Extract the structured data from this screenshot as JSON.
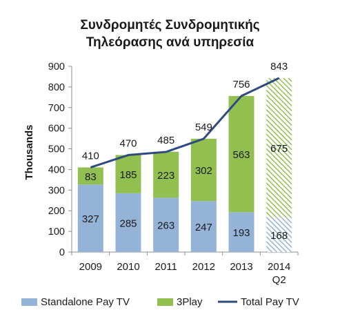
{
  "chart_data": {
    "type": "bar",
    "title": [
      "Συνδρομητές Συνδρομητικής",
      "Τηλεόρασης ανά υπηρεσία"
    ],
    "ylabel": "Thousands",
    "ylim": [
      0,
      900
    ],
    "yticks": [
      0,
      100,
      200,
      300,
      400,
      500,
      600,
      700,
      800,
      900
    ],
    "categories": [
      "2009",
      "2010",
      "2011",
      "2012",
      "2013",
      "2014\nQ2"
    ],
    "series": [
      {
        "name": "Standalone Pay TV",
        "kind": "bar-stack",
        "color": "#95b3d7",
        "values": [
          327,
          285,
          263,
          247,
          193,
          168
        ]
      },
      {
        "name": "3Play",
        "kind": "bar-stack",
        "color": "#92c050",
        "values": [
          83,
          185,
          223,
          302,
          563,
          675
        ]
      },
      {
        "name": "Total Pay TV",
        "kind": "line",
        "color": "#2e4a7e",
        "values": [
          410,
          470,
          485,
          549,
          756,
          843
        ]
      }
    ],
    "hatched_category": "2014\nQ2",
    "legend_position": "bottom",
    "grid": false
  }
}
